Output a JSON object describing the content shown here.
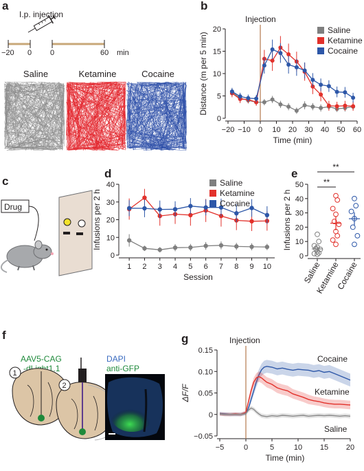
{
  "colors": {
    "saline": "#7f7f7f",
    "ketamine": "#e2312b",
    "cocaine": "#2d57a8",
    "injection_line": "#b9835a",
    "timeline": "#c8a778",
    "green": "#1f8a3b"
  },
  "panel_a": {
    "label": "a",
    "injection_text": "I.p. injection",
    "tick_labels": [
      "−20",
      "0",
      "0",
      "60"
    ],
    "unit": "min",
    "traces": [
      {
        "name": "Saline",
        "color": "#8c8c8c"
      },
      {
        "name": "Ketamine",
        "color": "#e3242b"
      },
      {
        "name": "Cocaine",
        "color": "#2e4fa8"
      }
    ]
  },
  "panel_c": {
    "label": "c",
    "drug_label": "Drug"
  },
  "panel_f": {
    "label": "f",
    "virus_line1": "AAV5-CAG",
    "virus_line2": "-dLight1.1",
    "step1": "1",
    "step2": "2",
    "stain1": "DAPI",
    "stain2": "anti-GFP"
  },
  "chart_data": [
    {
      "panel": "b",
      "type": "line",
      "xlabel": "Time (min)",
      "ylabel": "Distance (m per 5 min)",
      "xlim": [
        -20,
        60
      ],
      "ylim": [
        0,
        20
      ],
      "xticks": [
        "−20",
        "−10",
        "0",
        "10",
        "20",
        "30",
        "40",
        "50",
        "60"
      ],
      "yticks": [
        "0",
        "5",
        "10",
        "15",
        "20"
      ],
      "annotation": "Injection",
      "injection_x": 0,
      "legend": "top-right",
      "series": [
        {
          "name": "Saline",
          "color": "#7f7f7f",
          "x": [
            -17.5,
            -12.5,
            -7.5,
            -2.5,
            2.5,
            7.5,
            12.5,
            17.5,
            22.5,
            27.5,
            32.5,
            37.5,
            42.5,
            47.5,
            52.5,
            57.5
          ],
          "y": [
            5.9,
            4.5,
            4.0,
            3.6,
            3.6,
            4.2,
            3.1,
            2.6,
            1.7,
            2.9,
            2.6,
            2.3,
            2.6,
            2.1,
            2.3,
            2.6
          ],
          "err": [
            0.8,
            0.8,
            0.7,
            0.7,
            0.7,
            0.8,
            0.8,
            0.8,
            0.7,
            0.9,
            0.8,
            0.8,
            0.8,
            0.7,
            0.8,
            0.8
          ]
        },
        {
          "name": "Ketamine",
          "color": "#e2312b",
          "x": [
            -17.5,
            -12.5,
            -7.5,
            -2.5,
            2.5,
            7.5,
            12.5,
            17.5,
            22.5,
            27.5,
            32.5,
            37.5,
            42.5,
            47.5,
            52.5,
            57.5
          ],
          "y": [
            5.6,
            4.3,
            4.2,
            3.6,
            13.3,
            12.9,
            15.8,
            14.3,
            12.7,
            10.4,
            7.1,
            5.3,
            2.8,
            2.7,
            2.8,
            2.7
          ],
          "err": [
            0.9,
            0.9,
            0.8,
            0.8,
            2.0,
            2.3,
            2.6,
            2.4,
            2.2,
            2.0,
            1.7,
            1.5,
            1.1,
            1.0,
            1.1,
            1.0
          ]
        },
        {
          "name": "Cocaine",
          "color": "#2d57a8",
          "x": [
            -17.5,
            -12.5,
            -7.5,
            -2.5,
            2.5,
            7.5,
            12.5,
            17.5,
            22.5,
            27.5,
            32.5,
            37.5,
            42.5,
            47.5,
            52.5,
            57.5
          ],
          "y": [
            6.0,
            4.9,
            4.5,
            4.4,
            11.8,
            15.4,
            14.6,
            12.0,
            11.4,
            10.7,
            8.6,
            7.5,
            7.2,
            5.9,
            5.8,
            4.6
          ],
          "err": [
            0.8,
            0.8,
            0.8,
            0.8,
            1.8,
            2.2,
            2.2,
            2.0,
            1.9,
            1.8,
            1.5,
            1.4,
            1.3,
            1.2,
            1.2,
            1.1
          ]
        }
      ]
    },
    {
      "panel": "d",
      "type": "line",
      "xlabel": "Session",
      "ylabel": "Infusions per 2 h",
      "xlim": [
        0.5,
        10.5
      ],
      "ylim": [
        0,
        40
      ],
      "xticks": [
        "1",
        "2",
        "3",
        "4",
        "5",
        "6",
        "7",
        "8",
        "9",
        "10"
      ],
      "yticks": [
        "0",
        "10",
        "20",
        "30",
        "40"
      ],
      "legend": "top-right",
      "series": [
        {
          "name": "Saline",
          "color": "#7f7f7f",
          "x": [
            1,
            2,
            3,
            4,
            5,
            6,
            7,
            8,
            9,
            10
          ],
          "y": [
            8.3,
            3.8,
            3.0,
            4.2,
            4.3,
            5.2,
            5.5,
            4.9,
            4.7,
            4.6
          ],
          "err": [
            3.5,
            1.5,
            1.5,
            2.0,
            2.0,
            2.2,
            2.2,
            2.0,
            2.0,
            1.8
          ]
        },
        {
          "name": "Ketamine",
          "color": "#e2312b",
          "x": [
            1,
            2,
            3,
            4,
            5,
            6,
            7,
            8,
            9,
            10
          ],
          "y": [
            26.0,
            32.4,
            22.1,
            23.1,
            22.6,
            25.2,
            22.1,
            19.6,
            19.1,
            19.3
          ],
          "err": [
            6.0,
            5.0,
            5.5,
            5.5,
            6.0,
            6.5,
            6.0,
            5.5,
            5.5,
            5.5
          ]
        },
        {
          "name": "Cocaine",
          "color": "#2d57a8",
          "x": [
            1,
            2,
            3,
            4,
            5,
            6,
            7,
            8,
            9,
            10
          ],
          "y": [
            26.5,
            26.4,
            25.8,
            25.9,
            27.7,
            26.9,
            26.9,
            23.6,
            26.6,
            22.6
          ],
          "err": [
            4.5,
            5.0,
            5.0,
            4.5,
            4.5,
            4.5,
            5.0,
            5.0,
            5.0,
            5.0
          ]
        }
      ]
    },
    {
      "panel": "e",
      "type": "scatter",
      "ylabel": "Infusions per 2 h",
      "ylim": [
        0,
        50
      ],
      "yticks": [
        "0",
        "10",
        "20",
        "30",
        "40",
        "50"
      ],
      "categories": [
        "Saline",
        "Ketamine",
        "Cocaine"
      ],
      "significance": [
        {
          "from": "Saline",
          "to": "Ketamine",
          "label": "**"
        },
        {
          "from": "Saline",
          "to": "Cocaine",
          "label": "**"
        }
      ],
      "series": [
        {
          "name": "Saline",
          "color": "#7f7f7f",
          "mean": 4.8,
          "sem": 1.8,
          "values": [
            15,
            10,
            7,
            6,
            5,
            4.5,
            3,
            2,
            1.5,
            1
          ]
        },
        {
          "name": "Ketamine",
          "color": "#e2312b",
          "mean": 22.8,
          "sem": 5.0,
          "values": [
            42,
            39,
            33,
            29,
            24,
            22,
            17,
            14,
            11,
            8
          ]
        },
        {
          "name": "Cocaine",
          "color": "#2d57a8",
          "mean": 25.9,
          "sem": 4.5,
          "values": [
            40,
            35,
            31,
            26,
            20,
            14,
            8
          ]
        }
      ]
    },
    {
      "panel": "g",
      "type": "area",
      "xlabel": "Time (min)",
      "ylabel": "ΔF/F",
      "xlim": [
        -5,
        20
      ],
      "ylim": [
        -0.05,
        0.15
      ],
      "xticks": [
        "−5",
        "0",
        "5",
        "10",
        "15",
        "20"
      ],
      "yticks": [
        "−0.05",
        "0",
        "0.05",
        "0.10",
        "0.15"
      ],
      "annotation": "Injection",
      "injection_x": 0,
      "series": [
        {
          "name": "Cocaine",
          "color": "#2d57a8",
          "x": [
            -5,
            -4,
            -3,
            -2,
            -1,
            0,
            0.5,
            1,
            1.5,
            2,
            2.5,
            3,
            3.5,
            4,
            5,
            6,
            7,
            8,
            9,
            10,
            11,
            12,
            13,
            14,
            15,
            16,
            17,
            18,
            19,
            20
          ],
          "y": [
            0.002,
            0.001,
            0.0,
            0.0,
            0.0,
            0.003,
            0.015,
            0.035,
            0.055,
            0.075,
            0.092,
            0.104,
            0.11,
            0.112,
            0.11,
            0.106,
            0.108,
            0.105,
            0.103,
            0.105,
            0.104,
            0.103,
            0.1,
            0.102,
            0.098,
            0.1,
            0.095,
            0.09,
            0.085,
            0.08
          ],
          "err": [
            0.004,
            0.004,
            0.004,
            0.004,
            0.004,
            0.004,
            0.006,
            0.008,
            0.01,
            0.012,
            0.013,
            0.014,
            0.015,
            0.015,
            0.015,
            0.015,
            0.015,
            0.015,
            0.015,
            0.015,
            0.015,
            0.015,
            0.015,
            0.015,
            0.015,
            0.015,
            0.015,
            0.015,
            0.015,
            0.015
          ]
        },
        {
          "name": "Ketamine",
          "color": "#e2312b",
          "x": [
            -5,
            -4,
            -3,
            -2,
            -1,
            0,
            0.5,
            1,
            1.5,
            2,
            2.5,
            3,
            3.5,
            4,
            5,
            6,
            7,
            8,
            9,
            10,
            11,
            12,
            13,
            14,
            15,
            16,
            17,
            18,
            19,
            20
          ],
          "y": [
            0.001,
            0.0,
            0.0,
            0.001,
            0.0,
            0.005,
            0.03,
            0.055,
            0.075,
            0.085,
            0.088,
            0.085,
            0.08,
            0.075,
            0.07,
            0.062,
            0.058,
            0.055,
            0.048,
            0.044,
            0.04,
            0.035,
            0.032,
            0.03,
            0.027,
            0.025,
            0.024,
            0.024,
            0.023,
            0.022
          ],
          "err": [
            0.004,
            0.004,
            0.004,
            0.004,
            0.004,
            0.004,
            0.007,
            0.009,
            0.01,
            0.011,
            0.012,
            0.012,
            0.012,
            0.012,
            0.012,
            0.012,
            0.012,
            0.012,
            0.011,
            0.011,
            0.011,
            0.011,
            0.01,
            0.01,
            0.01,
            0.01,
            0.01,
            0.01,
            0.01,
            0.01
          ]
        },
        {
          "name": "Saline",
          "color": "#8a8a8a",
          "x": [
            -5,
            -4,
            -3,
            -2,
            -1,
            0,
            0.5,
            1,
            1.5,
            2,
            2.5,
            3,
            3.5,
            4,
            5,
            6,
            7,
            8,
            9,
            10,
            11,
            12,
            13,
            14,
            15,
            16,
            17,
            18,
            19,
            20
          ],
          "y": [
            0.001,
            0.0,
            0.0,
            0.0,
            0.0,
            0.002,
            0.01,
            0.015,
            0.012,
            0.006,
            0.001,
            -0.003,
            -0.004,
            -0.005,
            -0.003,
            -0.004,
            -0.002,
            -0.003,
            -0.004,
            -0.003,
            -0.002,
            -0.004,
            -0.003,
            -0.002,
            -0.003,
            -0.002,
            -0.003,
            -0.004,
            -0.003,
            -0.004
          ],
          "err": [
            0.004,
            0.004,
            0.004,
            0.004,
            0.004,
            0.004,
            0.005,
            0.005,
            0.005,
            0.005,
            0.005,
            0.005,
            0.005,
            0.005,
            0.005,
            0.005,
            0.005,
            0.005,
            0.005,
            0.005,
            0.005,
            0.005,
            0.005,
            0.005,
            0.005,
            0.005,
            0.005,
            0.005,
            0.005,
            0.005
          ]
        }
      ]
    }
  ]
}
